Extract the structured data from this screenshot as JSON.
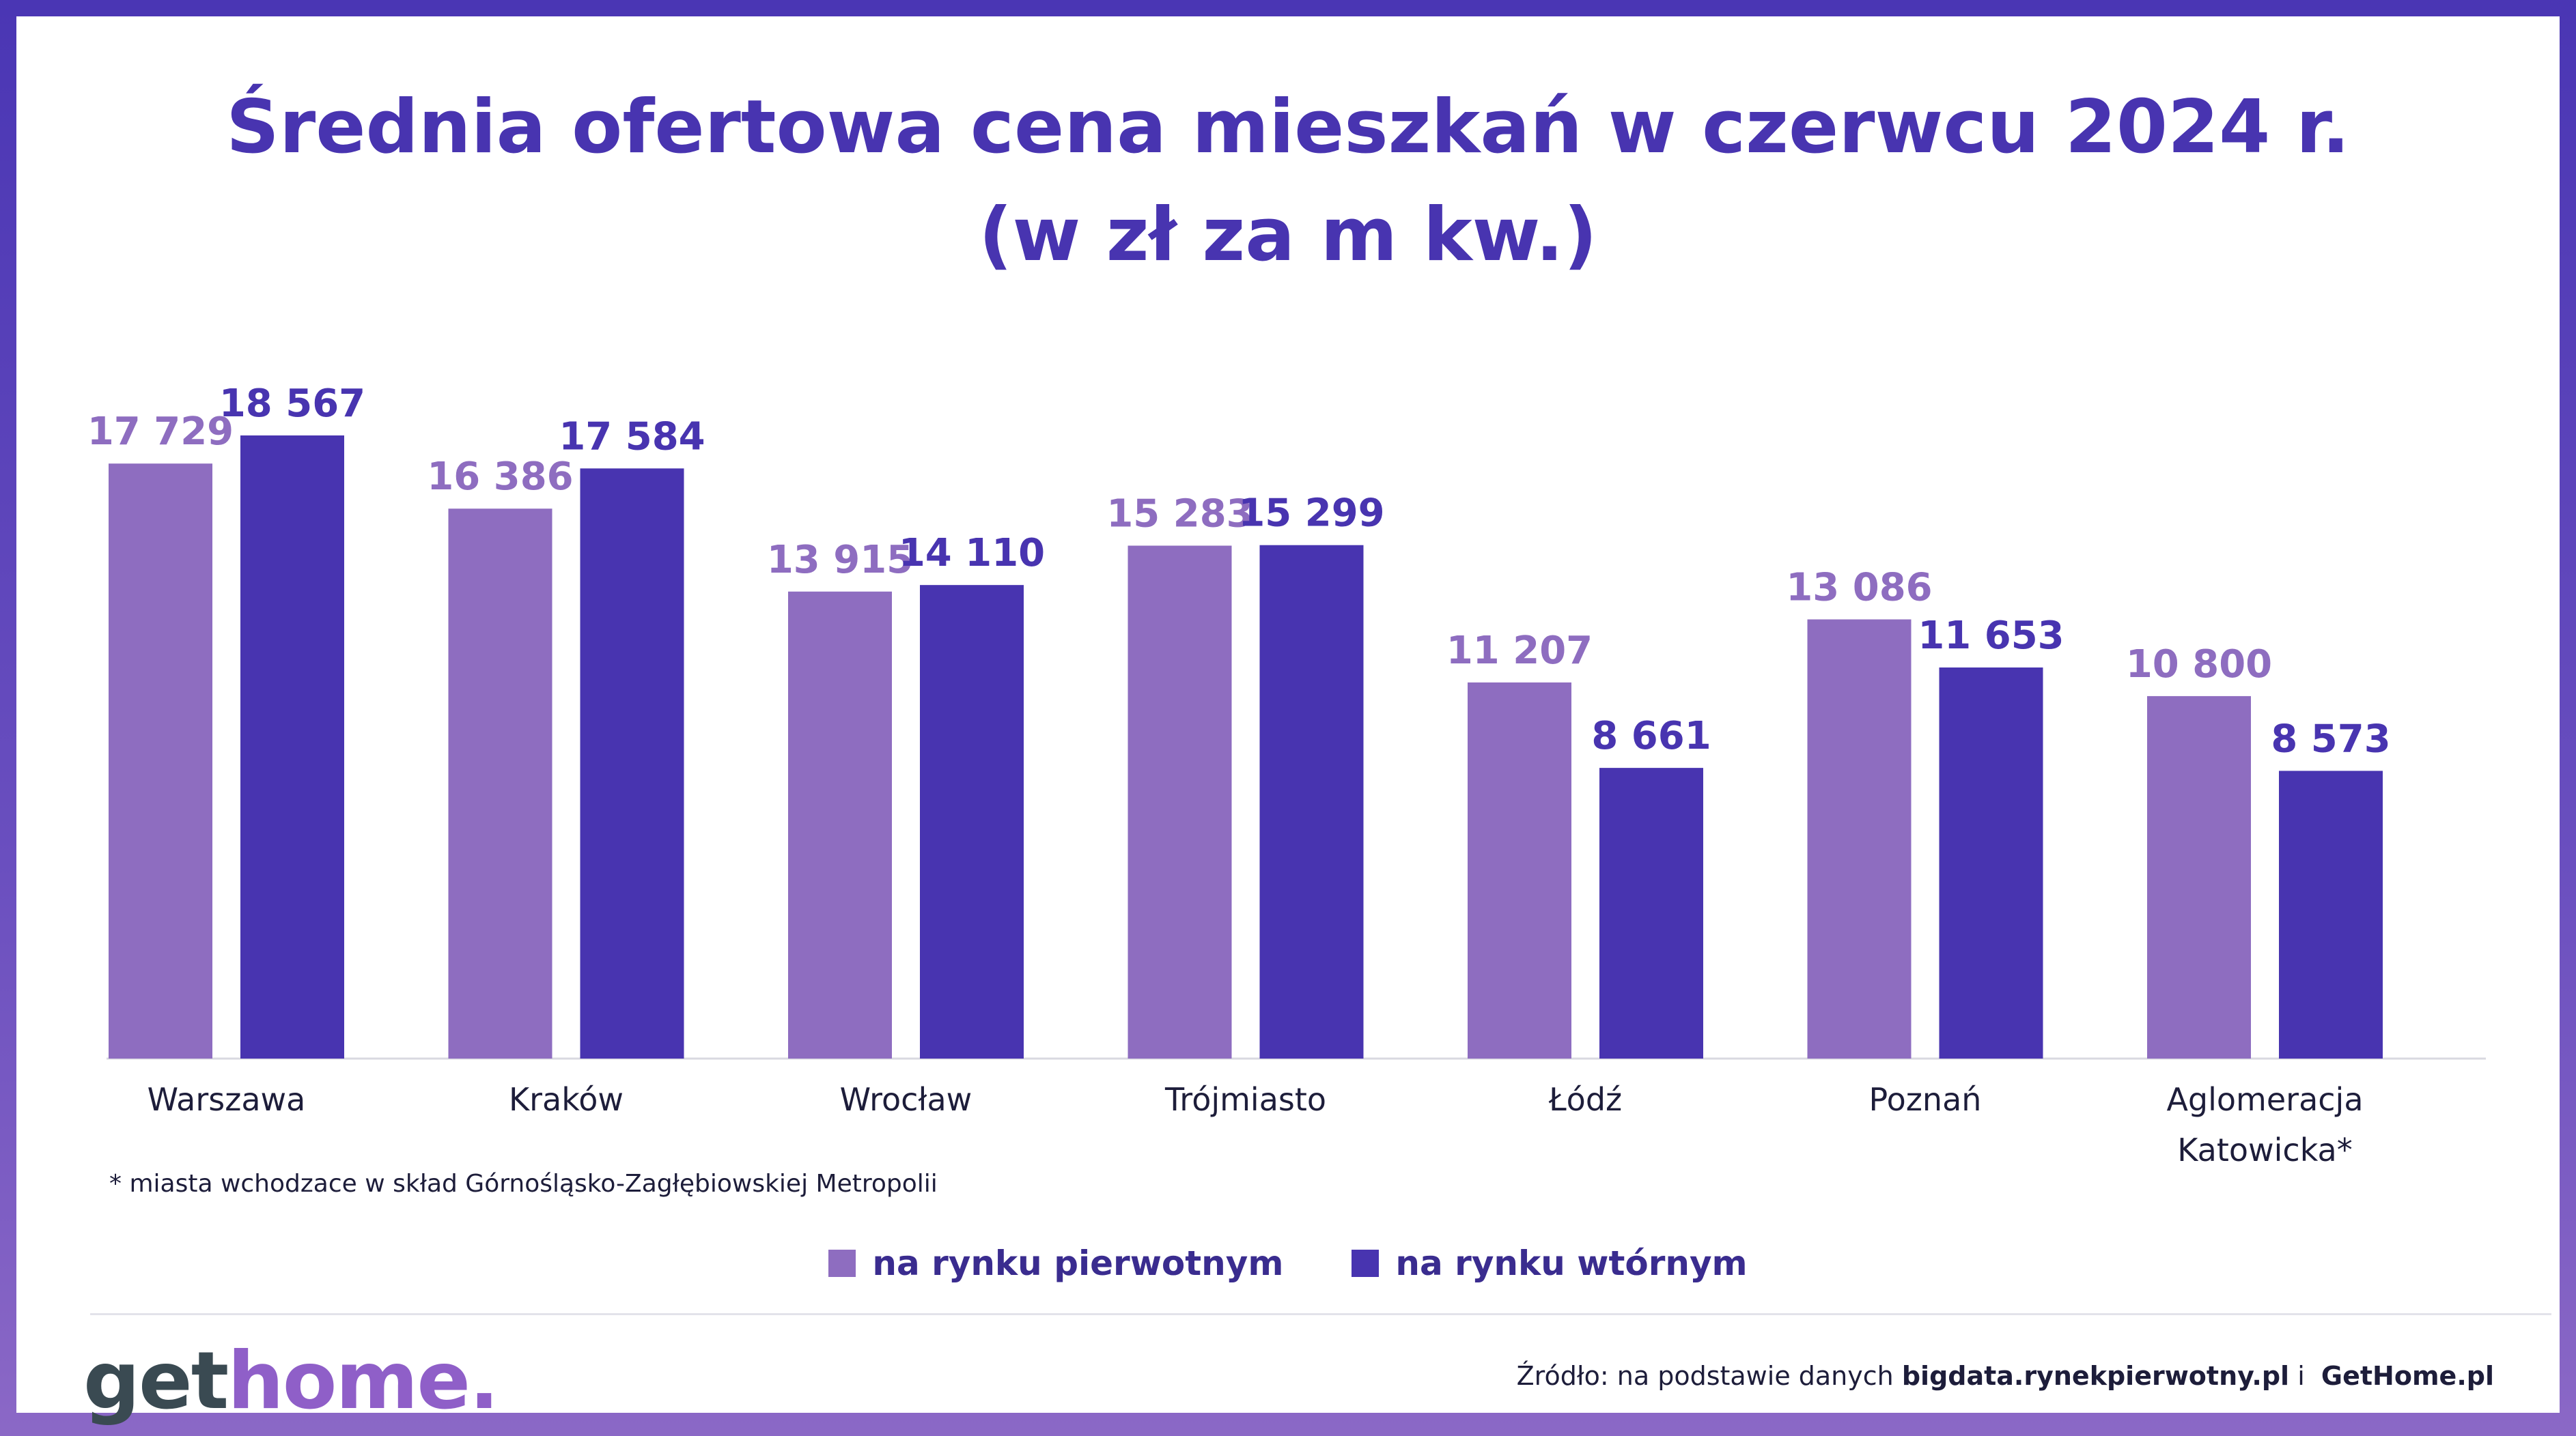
{
  "title_line1": "Średnia ofertowa cena mieszkań w czerwcu  2024 r.",
  "title_line2": "(w zł za m kw.)",
  "footnote": "* miasta wchodzace w skład Górnośląsko-Zagłębiowskiej Metropolii",
  "legend": {
    "primary": "na rynku pierwotnym",
    "secondary": "na rynku wtórnym"
  },
  "logo": {
    "part1": "get",
    "part2": "home."
  },
  "source": {
    "prefix": "Źródło: na podstawie danych",
    "link1": "bigdata.rynekpierwotny.pl",
    "connector": "i",
    "link2": "GetHome.pl"
  },
  "colors": {
    "primary": "#8e6dc0",
    "secondary": "#4834b0",
    "title": "#4834b0",
    "background": "#4a36b4"
  },
  "chart_data": {
    "type": "bar",
    "categories": [
      [
        "Warszawa"
      ],
      [
        "Kraków"
      ],
      [
        "Wrocław"
      ],
      [
        "Trójmiasto"
      ],
      [
        "Łódź"
      ],
      [
        "Poznań"
      ],
      [
        "Aglomeracja",
        "Katowicka*"
      ]
    ],
    "series": [
      {
        "name": "na rynku pierwotnym",
        "values": [
          17729,
          16386,
          13915,
          15283,
          11207,
          13086,
          10800
        ],
        "labels": [
          "17 729",
          "16 386",
          "13 915",
          "15 283",
          "11 207",
          "13 086",
          "10 800"
        ]
      },
      {
        "name": "na rynku wtórnym",
        "values": [
          18567,
          17584,
          14110,
          15299,
          8661,
          11653,
          8573
        ],
        "labels": [
          "18 567",
          "17 584",
          "14 110",
          "15 299",
          "8 661",
          "11 653",
          "8 573"
        ]
      }
    ],
    "ylim": [
      0,
      18567
    ],
    "grid": false,
    "legend": "bottom"
  }
}
